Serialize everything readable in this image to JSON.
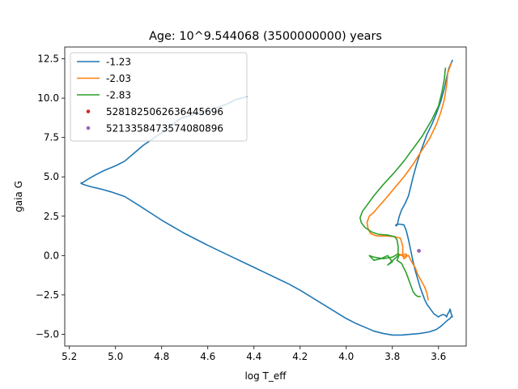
{
  "chart_data": {
    "type": "line",
    "title": "Age: 10^9.544068 (3500000000) years",
    "xlabel": "log T_eff",
    "ylabel": "gaia G",
    "xlim": [
      5.22,
      3.48
    ],
    "ylim": [
      13.25,
      -5.75
    ],
    "x_inverted": true,
    "y_inverted": true,
    "xticks": [
      5.2,
      5.0,
      4.8,
      4.6,
      4.4,
      4.2,
      4.0,
      3.8,
      3.6
    ],
    "xtick_labels": [
      "5.2",
      "5.0",
      "4.8",
      "4.6",
      "4.4",
      "4.2",
      "4.0",
      "3.8",
      "3.6"
    ],
    "yticks": [
      -5.0,
      -2.5,
      0.0,
      2.5,
      5.0,
      7.5,
      10.0,
      12.5
    ],
    "ytick_labels": [
      "−5.0",
      "−2.5",
      "0.0",
      "2.5",
      "5.0",
      "7.5",
      "10.0",
      "12.5"
    ],
    "grid": false,
    "legend_position": "upper-left",
    "series": [
      {
        "name": "-1.23",
        "kind": "line",
        "color": "#1f77b4",
        "x": [
          3.54,
          3.555,
          3.565,
          3.575,
          3.59,
          3.61,
          3.63,
          3.65,
          3.665,
          3.68,
          3.695,
          3.71,
          3.72,
          3.73,
          3.745,
          3.76,
          3.77,
          3.775,
          3.778,
          3.781,
          3.785,
          3.785,
          3.77,
          3.75,
          3.74,
          3.73,
          3.72,
          3.71,
          3.7,
          3.69,
          3.68,
          3.67,
          3.66,
          3.65,
          3.64,
          3.63,
          3.62,
          3.61,
          3.6,
          3.59,
          3.58,
          3.57,
          3.565,
          3.56,
          3.555,
          3.55,
          3.545,
          3.54,
          3.545,
          3.55,
          3.56,
          3.575,
          3.59,
          3.61,
          3.64,
          3.68,
          3.72,
          3.76,
          3.8,
          3.84,
          3.88,
          3.92,
          3.96,
          4.0,
          4.05,
          4.1,
          4.15,
          4.2,
          4.25,
          4.3,
          4.35,
          4.4,
          4.45,
          4.5,
          4.6,
          4.7,
          4.8,
          4.9,
          4.96,
          5.02,
          5.07,
          5.1,
          5.125,
          5.145,
          5.15,
          5.14,
          5.12,
          5.09,
          5.05,
          5.0,
          4.96,
          4.92,
          4.88,
          4.84,
          4.8,
          4.76,
          4.73,
          4.71,
          4.69,
          4.65,
          4.6,
          4.56,
          4.52,
          4.48,
          4.43
        ],
        "y": [
          12.4,
          11.9,
          11.3,
          10.6,
          9.8,
          9.0,
          8.3,
          7.7,
          7.1,
          6.5,
          5.8,
          5.0,
          4.4,
          3.8,
          3.3,
          2.9,
          2.5,
          2.2,
          2.0,
          1.9,
          1.9,
          1.95,
          2.0,
          1.95,
          1.6,
          1.0,
          0.3,
          -0.4,
          -1.0,
          -1.5,
          -2.0,
          -2.4,
          -2.8,
          -3.1,
          -3.3,
          -3.5,
          -3.7,
          -3.8,
          -3.9,
          -3.8,
          -3.75,
          -3.8,
          -3.9,
          -3.7,
          -3.6,
          -3.4,
          -3.7,
          -3.9,
          -3.9,
          -4.0,
          -4.1,
          -4.3,
          -4.5,
          -4.7,
          -4.85,
          -4.95,
          -5.0,
          -5.05,
          -5.05,
          -4.95,
          -4.8,
          -4.55,
          -4.3,
          -4.0,
          -3.55,
          -3.1,
          -2.65,
          -2.2,
          -1.8,
          -1.45,
          -1.1,
          -0.75,
          -0.4,
          -0.05,
          0.65,
          1.4,
          2.25,
          3.2,
          3.75,
          4.05,
          4.25,
          4.35,
          4.45,
          4.55,
          4.6,
          4.65,
          4.85,
          5.1,
          5.4,
          5.7,
          6.0,
          6.5,
          7.0,
          7.4,
          7.8,
          8.2,
          8.6,
          8.75,
          8.85,
          9.0,
          9.2,
          9.4,
          9.6,
          9.9,
          10.1
        ]
      },
      {
        "name": "-2.03",
        "kind": "line",
        "color": "#ff7f0e",
        "x": [
          3.545,
          3.56,
          3.565,
          3.575,
          3.59,
          3.61,
          3.64,
          3.68,
          3.71,
          3.75,
          3.79,
          3.83,
          3.86,
          3.88,
          3.9,
          3.91,
          3.905,
          3.895,
          3.87,
          3.83,
          3.79,
          3.765,
          3.755,
          3.755,
          3.75,
          3.74,
          3.74,
          3.76,
          3.78,
          3.75,
          3.73,
          3.72,
          3.7,
          3.69,
          3.675,
          3.66,
          3.65,
          3.645
        ],
        "y": [
          12.2,
          11.6,
          10.8,
          9.9,
          9.1,
          8.3,
          7.4,
          6.5,
          5.8,
          5.0,
          4.3,
          3.6,
          3.1,
          2.75,
          2.5,
          2.1,
          1.7,
          1.4,
          1.25,
          1.25,
          1.2,
          1.1,
          0.6,
          0.0,
          -0.2,
          -0.1,
          0.1,
          0.05,
          0.1,
          -0.05,
          0.0,
          -0.3,
          -0.8,
          -1.2,
          -1.6,
          -2.0,
          -2.4,
          -2.8
        ]
      },
      {
        "name": "-2.83",
        "kind": "line",
        "color": "#2ca02c",
        "x": [
          3.57,
          3.575,
          3.585,
          3.6,
          3.63,
          3.67,
          3.71,
          3.75,
          3.79,
          3.84,
          3.88,
          3.91,
          3.93,
          3.94,
          3.935,
          3.92,
          3.89,
          3.86,
          3.82,
          3.79,
          3.78,
          3.775,
          3.775,
          3.8,
          3.84,
          3.88,
          3.9,
          3.88,
          3.85,
          3.82,
          3.8,
          3.82,
          3.79,
          3.77,
          3.78,
          3.76,
          3.75,
          3.74,
          3.73,
          3.72,
          3.71,
          3.7,
          3.69,
          3.68
        ],
        "y": [
          11.9,
          11.2,
          10.4,
          9.5,
          8.6,
          7.6,
          6.8,
          6.0,
          5.3,
          4.5,
          3.8,
          3.2,
          2.8,
          2.4,
          2.1,
          1.8,
          1.5,
          1.35,
          1.3,
          1.2,
          1.0,
          0.6,
          0.1,
          -0.1,
          -0.2,
          -0.1,
          0.0,
          -0.3,
          -0.2,
          0.0,
          -0.4,
          -0.6,
          -0.2,
          0.05,
          -0.3,
          -0.5,
          -0.8,
          -1.1,
          -1.5,
          -1.9,
          -2.3,
          -2.5,
          -2.6,
          -2.6
        ]
      },
      {
        "name": "5281825062636445696",
        "kind": "point",
        "color": "#d62728",
        "x": [
          3.685
        ],
        "y": [
          0.3
        ]
      },
      {
        "name": "5213358473574080896",
        "kind": "point",
        "color": "#9467bd",
        "x": [
          3.685
        ],
        "y": [
          0.3
        ]
      }
    ]
  }
}
